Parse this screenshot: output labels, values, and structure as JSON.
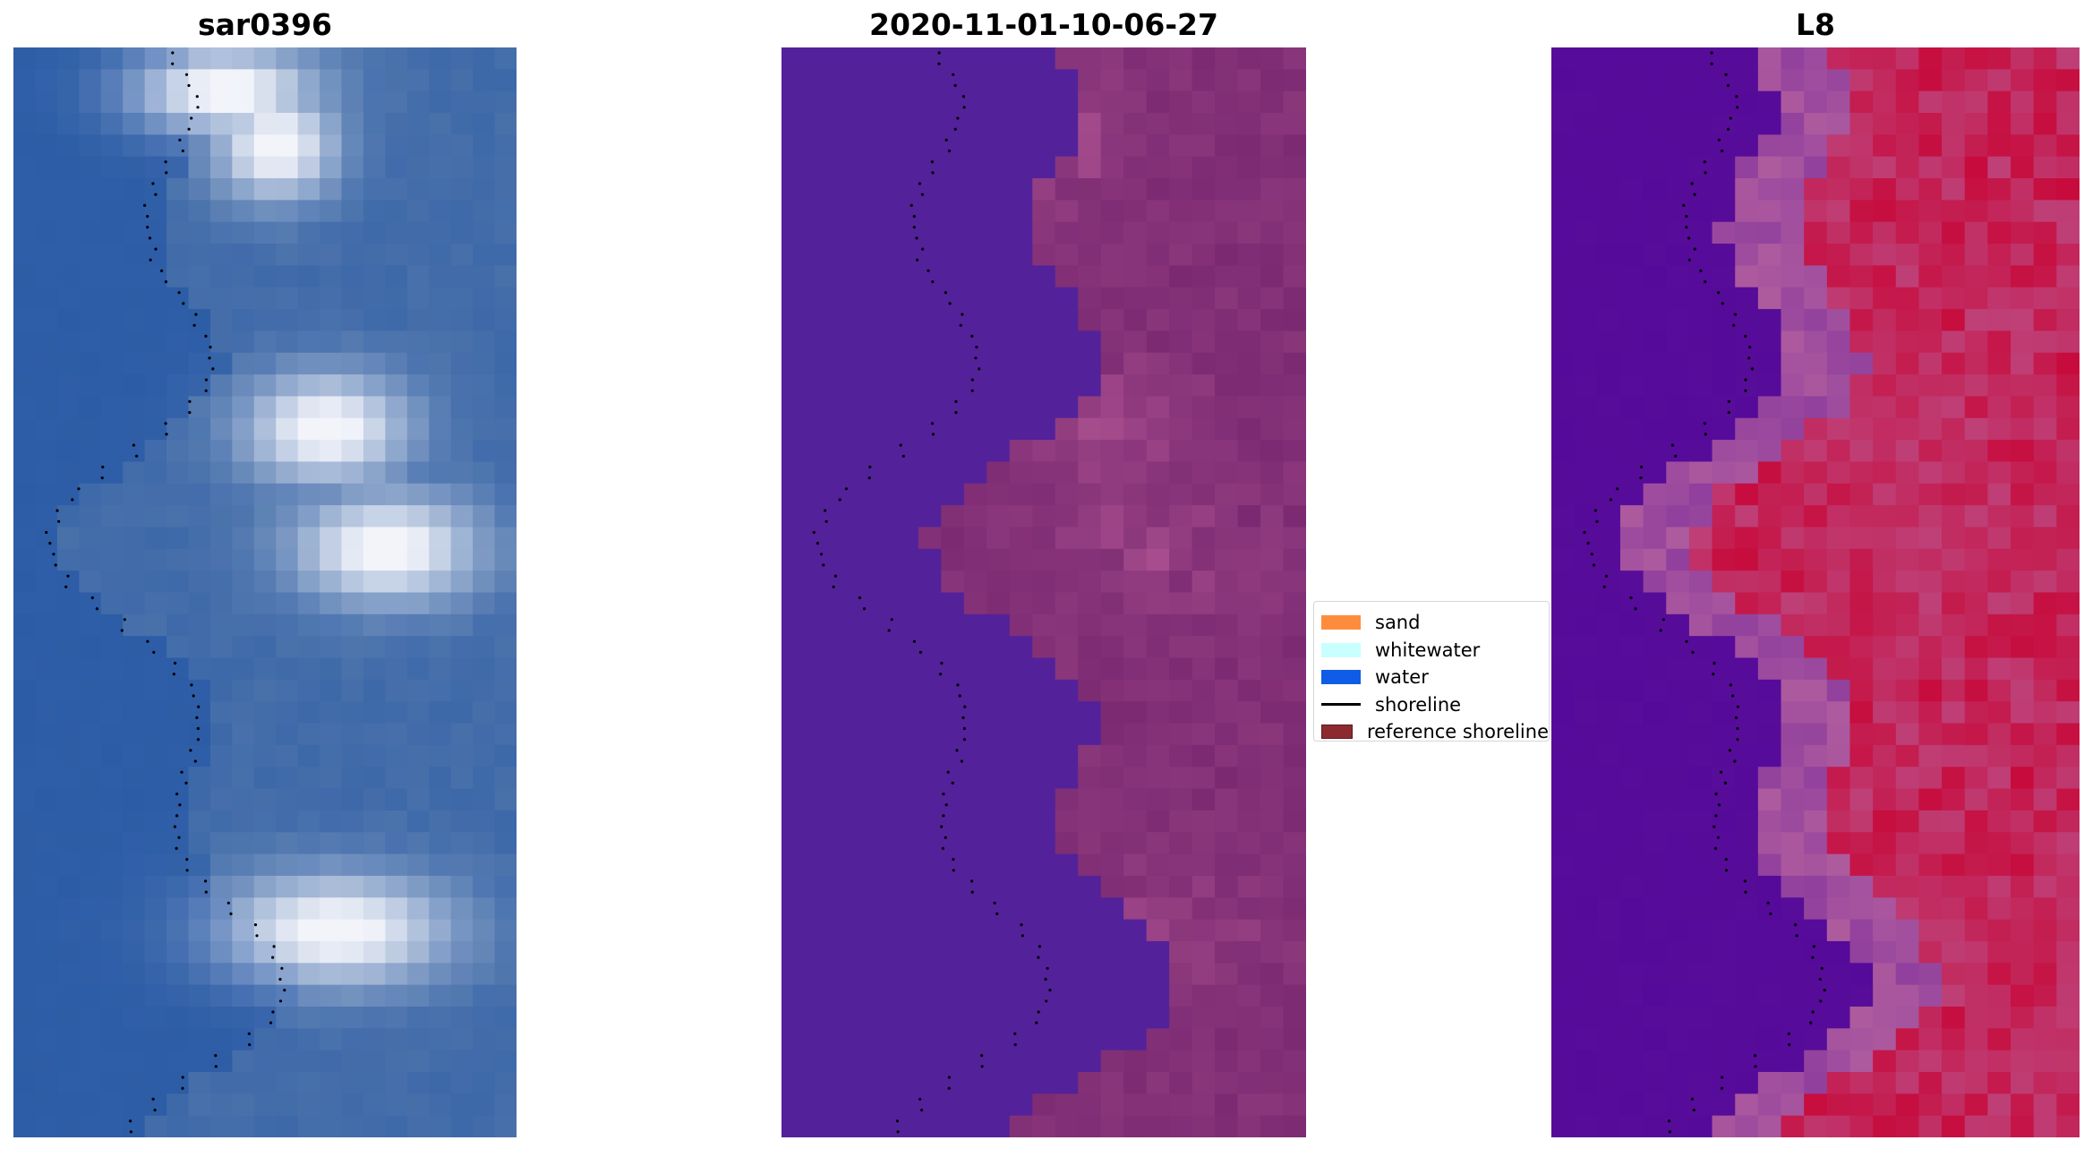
{
  "titles": {
    "rgb": "sar0396",
    "classified": "2020-11-01-10-06-27",
    "index": "L8"
  },
  "legend": {
    "items": [
      {
        "label": "sand",
        "color": "#ff8c3c",
        "kind": "patch"
      },
      {
        "label": "whitewater",
        "color": "#c8ffff",
        "kind": "patch"
      },
      {
        "label": "water",
        "color": "#0f5ce6",
        "kind": "patch"
      },
      {
        "label": "shoreline",
        "color": "#000000",
        "kind": "line"
      },
      {
        "label": "reference shoreline",
        "color": "#8c2a2f",
        "kind": "patch"
      }
    ]
  },
  "colors": {
    "water_dark": "#2f5ea8",
    "cloud_white": "#f2f4fa",
    "class_water": "#53229a",
    "class_land": "#7b2a72",
    "class_land_light": "#b75a98",
    "index_low": "#560a9a",
    "index_high": "#c70b3c",
    "index_mid": "#b8649f"
  }
}
